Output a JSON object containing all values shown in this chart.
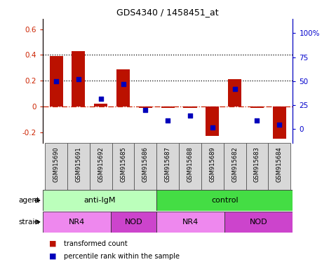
{
  "title": "GDS4340 / 1458451_at",
  "samples": [
    "GSM915690",
    "GSM915691",
    "GSM915692",
    "GSM915685",
    "GSM915686",
    "GSM915687",
    "GSM915688",
    "GSM915689",
    "GSM915682",
    "GSM915683",
    "GSM915684"
  ],
  "red_values": [
    0.39,
    0.43,
    0.02,
    0.29,
    -0.01,
    -0.01,
    -0.01,
    -0.23,
    0.21,
    -0.01,
    -0.25
  ],
  "blue_values": [
    50,
    52,
    32,
    47,
    20,
    9,
    14,
    2,
    42,
    9,
    5
  ],
  "ylim_left": [
    -0.28,
    0.68
  ],
  "ylim_right": [
    -14.0,
    115.0
  ],
  "yticks_left": [
    -0.2,
    0.0,
    0.2,
    0.4,
    0.6
  ],
  "ytick_labels_left": [
    "-0.2",
    "0",
    "0.2",
    "0.4",
    "0.6"
  ],
  "yticks_right": [
    0,
    25,
    50,
    75,
    100
  ],
  "ytick_labels_right": [
    "0",
    "25",
    "50",
    "75",
    "100%"
  ],
  "agent_groups": [
    {
      "label": "anti-IgM",
      "start": 0,
      "end": 5,
      "color": "#bbffbb"
    },
    {
      "label": "control",
      "start": 5,
      "end": 11,
      "color": "#44dd44"
    }
  ],
  "strain_groups": [
    {
      "label": "NR4",
      "start": 0,
      "end": 3,
      "color": "#ee88ee"
    },
    {
      "label": "NOD",
      "start": 3,
      "end": 5,
      "color": "#cc44cc"
    },
    {
      "label": "NR4",
      "start": 5,
      "end": 8,
      "color": "#ee88ee"
    },
    {
      "label": "NOD",
      "start": 8,
      "end": 11,
      "color": "#cc44cc"
    }
  ],
  "bar_color": "#bb1100",
  "dot_color": "#0000bb",
  "bar_width": 0.6,
  "legend_items": [
    {
      "color": "#bb1100",
      "label": "transformed count"
    },
    {
      "color": "#0000bb",
      "label": "percentile rank within the sample"
    }
  ],
  "agent_label": "agent",
  "strain_label": "strain",
  "left_axis_color": "#cc2200",
  "right_axis_color": "#0000cc"
}
